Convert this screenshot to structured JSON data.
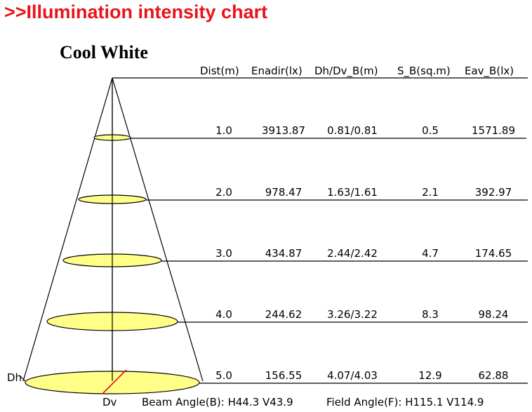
{
  "header": {
    "prefix": ">>",
    "title": "Illumination intensity chart",
    "color": "#e8141a"
  },
  "subtitle": "Cool White",
  "table": {
    "columns": [
      "Dist(m)",
      "Enadir(lx)",
      "Dh/Dv_B(m)",
      "S_B(sq.m)",
      "Eav_B(lx)"
    ],
    "rows": [
      [
        "1.0",
        "3913.87",
        "0.81/0.81",
        "0.5",
        "1571.89"
      ],
      [
        "2.0",
        "978.47",
        "1.63/1.61",
        "2.1",
        "392.97"
      ],
      [
        "3.0",
        "434.87",
        "2.44/2.42",
        "4.7",
        "174.65"
      ],
      [
        "4.0",
        "244.62",
        "3.26/3.22",
        "8.3",
        "98.24"
      ],
      [
        "5.0",
        "156.55",
        "4.07/4.03",
        "12.9",
        "62.88"
      ]
    ]
  },
  "labels": {
    "dh": "Dh",
    "dv": "Dv",
    "beam_angle": "Beam Angle(B): H44.3 V43.9",
    "field_angle": "Field Angle(F): H115.1 V114.9"
  },
  "colors": {
    "ellipse_fill": "#ffff88",
    "line": "#000000",
    "diameter_marker": "#e8141a"
  }
}
